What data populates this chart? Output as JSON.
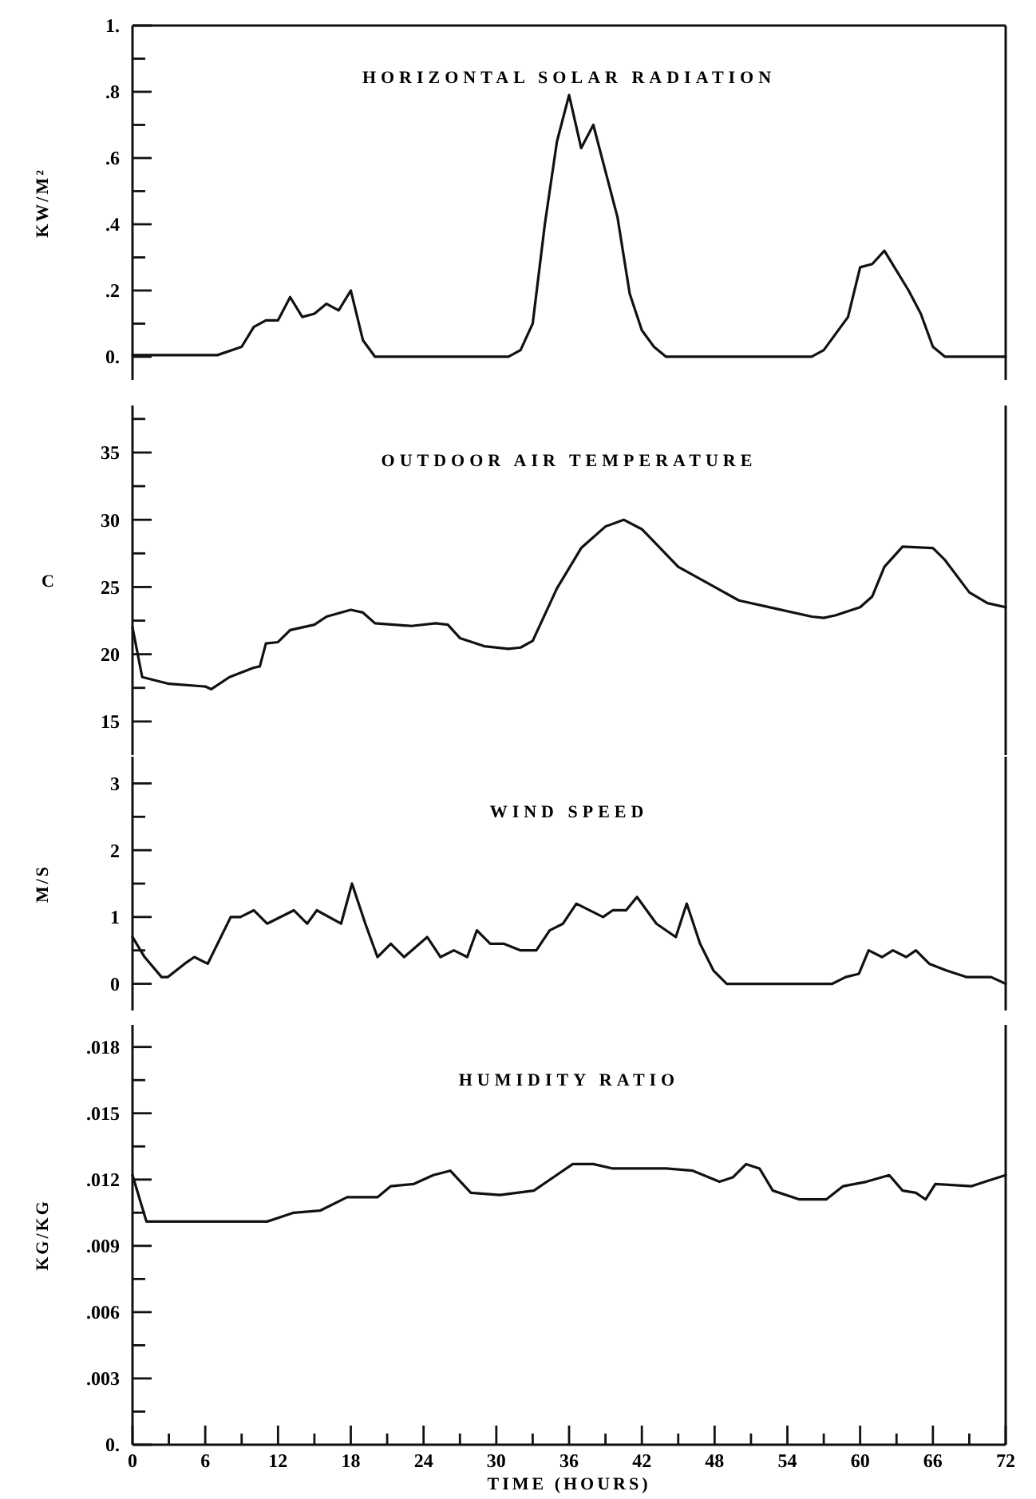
{
  "chart_data": [
    {
      "type": "line",
      "title": "HORIZONTAL SOLAR RADIATION",
      "ylabel": "KW/M²",
      "xlim": [
        0,
        72
      ],
      "ylim": [
        -0.07,
        1
      ],
      "tick_labels": "y",
      "yticks": [
        {
          "value": 0,
          "label": "0."
        },
        {
          "value": 0.1,
          "label": null
        },
        {
          "value": 0.2,
          "label": ".2"
        },
        {
          "value": 0.3,
          "label": null
        },
        {
          "value": 0.4,
          "label": ".4"
        },
        {
          "value": 0.5,
          "label": null
        },
        {
          "value": 0.6,
          "label": ".6"
        },
        {
          "value": 0.7,
          "label": null
        },
        {
          "value": 0.8,
          "label": ".8"
        },
        {
          "value": 0.9,
          "label": null
        },
        {
          "value": 1,
          "label": "1."
        }
      ],
      "series": [
        {
          "color": "#111111",
          "x": [
            0,
            7,
            9,
            10,
            11,
            12,
            13,
            14,
            15,
            16,
            17,
            18,
            19,
            20,
            31,
            32,
            33,
            34,
            35,
            36,
            37,
            38,
            39,
            40,
            41,
            42,
            43,
            44,
            56,
            57,
            59,
            60,
            61,
            62,
            63,
            64,
            65,
            66,
            67,
            72
          ],
          "values": [
            0.005,
            0.005,
            0.03,
            0.09,
            0.11,
            0.11,
            0.18,
            0.12,
            0.13,
            0.16,
            0.14,
            0.2,
            0.05,
            0,
            0,
            0.02,
            0.1,
            0.4,
            0.65,
            0.79,
            0.63,
            0.7,
            0.56,
            0.42,
            0.19,
            0.08,
            0.03,
            0,
            0,
            0.02,
            0.12,
            0.27,
            0.28,
            0.32,
            0.26,
            0.2,
            0.13,
            0.03,
            0,
            0
          ]
        }
      ]
    },
    {
      "type": "line",
      "title": "OUTDOOR AIR TEMPERATURE",
      "ylabel": "C",
      "xlim": [
        0,
        72
      ],
      "ylim": [
        12.5,
        38.5
      ],
      "tick_labels": "y",
      "yticks": [
        15,
        {
          "value": 17.5,
          "label": null
        },
        20,
        {
          "value": 22.5,
          "label": null
        },
        25,
        {
          "value": 27.5,
          "label": null
        },
        30,
        {
          "value": 32.5,
          "label": null
        },
        35,
        {
          "value": 37.5,
          "label": null
        }
      ],
      "series": [
        {
          "color": "#111111",
          "x": [
            0,
            0.8,
            3,
            6,
            6.5,
            8,
            10,
            10.5,
            11,
            12,
            13,
            15,
            16,
            18,
            19,
            20,
            23,
            25,
            26,
            27,
            29,
            31,
            32,
            33,
            35,
            37,
            39,
            40.5,
            42,
            45,
            48,
            50,
            53,
            56,
            57,
            58,
            60,
            61,
            62,
            63.5,
            66,
            67,
            69,
            70.5,
            72
          ],
          "values": [
            22,
            18.3,
            17.8,
            17.6,
            17.4,
            18.3,
            19,
            19.1,
            20.8,
            20.9,
            21.8,
            22.2,
            22.8,
            23.3,
            23.1,
            22.3,
            22.1,
            22.3,
            22.2,
            21.2,
            20.6,
            20.4,
            20.5,
            21,
            24.9,
            27.9,
            29.5,
            30,
            29.3,
            26.5,
            25,
            24,
            23.4,
            22.8,
            22.7,
            22.9,
            23.5,
            24.3,
            26.5,
            28,
            27.9,
            27,
            24.6,
            23.8,
            23.5
          ]
        }
      ]
    },
    {
      "type": "line",
      "title": "WIND SPEED",
      "ylabel": "M/S",
      "xlim": [
        0,
        72
      ],
      "ylim": [
        -0.4,
        3.4
      ],
      "tick_labels": "y",
      "yticks": [
        0,
        {
          "value": 0.5,
          "label": null
        },
        1,
        {
          "value": 1.5,
          "label": null
        },
        2,
        {
          "value": 2.5,
          "label": null
        },
        3
      ],
      "series": [
        {
          "color": "#111111",
          "x": [
            0,
            1,
            2.4,
            2.9,
            4.3,
            5.1,
            6.2,
            8.1,
            8.9,
            10,
            11.1,
            13.3,
            14.4,
            15.2,
            17.2,
            18.1,
            19.2,
            20.2,
            21.3,
            22.4,
            24.3,
            25.4,
            26.5,
            27.6,
            28.4,
            29.5,
            30.6,
            32,
            33.3,
            34.4,
            35.5,
            36.6,
            38.8,
            39.6,
            40.7,
            41.6,
            43.2,
            44.8,
            45.7,
            46.8,
            47.9,
            49,
            57.7,
            58.8,
            59.9,
            60.7,
            61.8,
            62.7,
            63.8,
            64.6,
            65.7,
            67.1,
            68.8,
            70.8,
            72
          ],
          "values": [
            0.7,
            0.4,
            0.1,
            0.1,
            0.3,
            0.4,
            0.3,
            1,
            1,
            1.1,
            0.9,
            1.1,
            0.9,
            1.1,
            0.9,
            1.5,
            0.9,
            0.4,
            0.6,
            0.4,
            0.7,
            0.4,
            0.5,
            0.4,
            0.8,
            0.6,
            0.6,
            0.5,
            0.5,
            0.8,
            0.9,
            1.2,
            1,
            1.1,
            1.1,
            1.3,
            0.9,
            0.7,
            1.2,
            0.6,
            0.2,
            0,
            0,
            0.1,
            0.15,
            0.5,
            0.4,
            0.5,
            0.4,
            0.5,
            0.3,
            0.2,
            0.1,
            0.1,
            0
          ]
        }
      ]
    },
    {
      "type": "line",
      "title": "HUMIDITY RATIO",
      "ylabel": "KG/KG",
      "xlabel": "TIME (HOURS)",
      "xlim": [
        0,
        72
      ],
      "ylim": [
        0,
        0.019
      ],
      "xticks": [
        0,
        {
          "value": 3,
          "label": null
        },
        6,
        {
          "value": 9,
          "label": null
        },
        12,
        {
          "value": 15,
          "label": null
        },
        18,
        {
          "value": 21,
          "label": null
        },
        24,
        {
          "value": 27,
          "label": null
        },
        30,
        {
          "value": 33,
          "label": null
        },
        36,
        {
          "value": 39,
          "label": null
        },
        42,
        {
          "value": 45,
          "label": null
        },
        48,
        {
          "value": 51,
          "label": null
        },
        54,
        {
          "value": 57,
          "label": null
        },
        60,
        {
          "value": 63,
          "label": null
        },
        66,
        {
          "value": 69,
          "label": null
        },
        72
      ],
      "yticks": [
        {
          "value": 0,
          "label": "0."
        },
        {
          "value": 0.0015,
          "label": null
        },
        {
          "value": 0.003,
          "label": ".003"
        },
        {
          "value": 0.0045,
          "label": null
        },
        {
          "value": 0.006,
          "label": ".006"
        },
        {
          "value": 0.0075,
          "label": null
        },
        {
          "value": 0.009,
          "label": ".009"
        },
        {
          "value": 0.0105,
          "label": null
        },
        {
          "value": 0.012,
          "label": ".012"
        },
        {
          "value": 0.0135,
          "label": null
        },
        {
          "value": 0.015,
          "label": ".015"
        },
        {
          "value": 0.0165,
          "label": null
        },
        {
          "value": 0.018,
          "label": ".018"
        }
      ],
      "series": [
        {
          "color": "#111111",
          "x": [
            0,
            1.15,
            11.1,
            13.3,
            15.5,
            17.7,
            20.2,
            21.3,
            23.2,
            24.8,
            26.2,
            27.9,
            30.3,
            33.1,
            34.7,
            36.3,
            38,
            39.6,
            44,
            46.2,
            48.4,
            49.5,
            50.6,
            51.7,
            52.8,
            55,
            57.2,
            58.6,
            60.5,
            62.4,
            63.5,
            64.6,
            65.4,
            66.2,
            69.2,
            70.3,
            72
          ],
          "values": [
            0.0122,
            0.0101,
            0.0101,
            0.0105,
            0.0106,
            0.0112,
            0.0112,
            0.0117,
            0.0118,
            0.0122,
            0.0124,
            0.0114,
            0.0113,
            0.0115,
            0.0121,
            0.0127,
            0.0127,
            0.0125,
            0.0125,
            0.0124,
            0.0119,
            0.0121,
            0.0127,
            0.0125,
            0.0115,
            0.0111,
            0.0111,
            0.0117,
            0.0119,
            0.0122,
            0.0115,
            0.0114,
            0.0111,
            0.0118,
            0.0117,
            0.0119,
            0.0122
          ]
        }
      ]
    }
  ]
}
